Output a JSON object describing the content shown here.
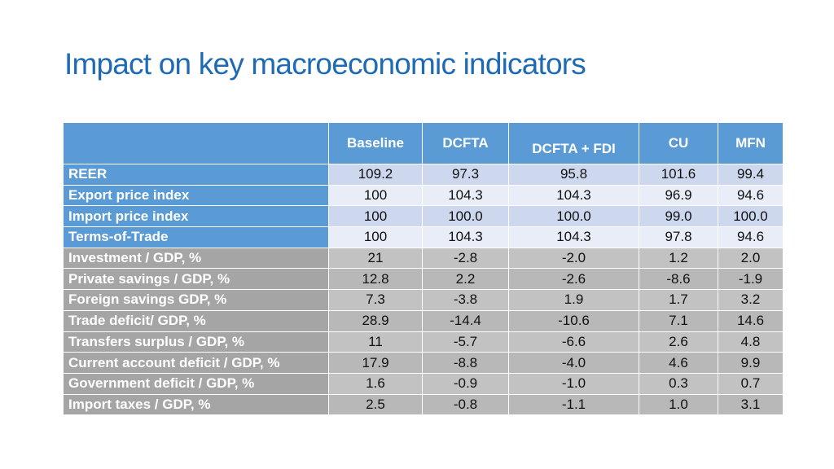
{
  "title": "Impact on key macroeconomic indicators",
  "table": {
    "headers": [
      "",
      "Baseline",
      "DCFTA",
      "DCFTA  + FDI",
      "CU",
      "MFN"
    ],
    "rows": [
      {
        "label": "REER",
        "values": [
          "109.2",
          "97.3",
          "95.8",
          "101.6",
          "99.4"
        ]
      },
      {
        "label": "Export price index",
        "values": [
          "100",
          "104.3",
          "104.3",
          "96.9",
          "94.6"
        ]
      },
      {
        "label": "Import price index",
        "values": [
          "100",
          "100.0",
          "100.0",
          "99.0",
          "100.0"
        ]
      },
      {
        "label": "Terms-of-Trade",
        "values": [
          "100",
          "104.3",
          "104.3",
          "97.8",
          "94.6"
        ]
      },
      {
        "label": "Investment / GDP, %",
        "values": [
          "21",
          "-2.8",
          "-2.0",
          "1.2",
          "2.0"
        ]
      },
      {
        "label": "Private savings / GDP, %",
        "values": [
          "12.8",
          "2.2",
          "-2.6",
          "-8.6",
          "-1.9"
        ]
      },
      {
        "label": "Foreign savings GDP, %",
        "values": [
          "7.3",
          "-3.8",
          "1.9",
          "1.7",
          "3.2"
        ]
      },
      {
        "label": "Trade deficit/ GDP, %",
        "values": [
          "28.9",
          "-14.4",
          "-10.6",
          "7.1",
          "14.6"
        ]
      },
      {
        "label": "Transfers surplus / GDP, %",
        "values": [
          "11",
          "-5.7",
          "-6.6",
          "2.6",
          "4.8"
        ]
      },
      {
        "label": "Current account deficit / GDP, %",
        "values": [
          "17.9",
          "-8.8",
          "-4.0",
          "4.6",
          "9.9"
        ]
      },
      {
        "label": "Government deficit / GDP, %",
        "values": [
          "1.6",
          "-0.9",
          "-1.0",
          "0.3",
          "0.7"
        ]
      },
      {
        "label": "Import taxes / GDP, %",
        "values": [
          "2.5",
          "-0.8",
          "-1.1",
          "1.0",
          "3.1"
        ]
      }
    ]
  },
  "colors": {
    "title": "#1f6ab5",
    "header_bg": "#5b9bd5",
    "label_blue": "#5b9bd5",
    "label_gray": "#a5a5a5",
    "cell_blue_light": "#cdd8ee",
    "cell_blue_lighter": "#e8edf7",
    "cell_gray": "#bcbcbc"
  }
}
